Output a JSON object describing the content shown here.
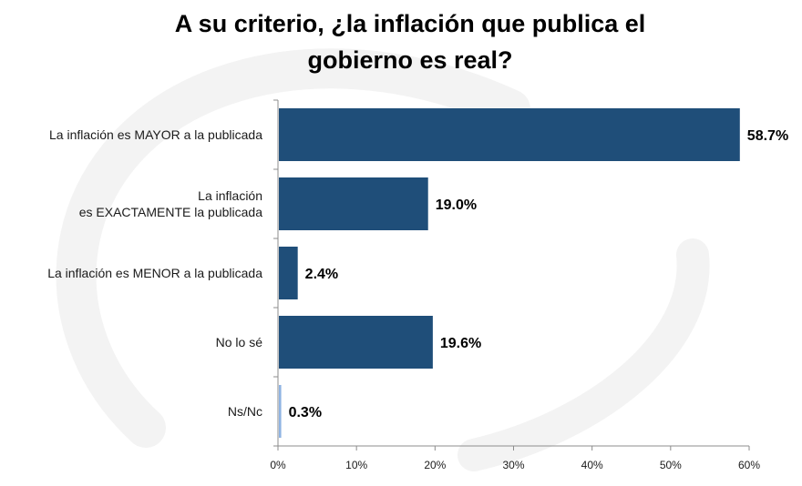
{
  "chart_data": {
    "type": "bar",
    "orientation": "horizontal",
    "title_lines": [
      "A su criterio, ¿la inflación que publica el",
      "gobierno es real?"
    ],
    "categories": [
      [
        "La inflación es MAYOR a la publicada"
      ],
      [
        "La inflación",
        "es EXACTAMENTE la publicada"
      ],
      [
        "La inflación es MENOR a la publicada"
      ],
      [
        "No lo sé"
      ],
      [
        "Ns/Nc"
      ]
    ],
    "values": [
      58.7,
      19.0,
      2.4,
      19.6,
      0.3
    ],
    "value_labels": [
      "58.7%",
      "19.0%",
      "2.4%",
      "19.6%",
      "0.3%"
    ],
    "bar_colors": [
      "#1f4e79",
      "#1f4e79",
      "#1f4e79",
      "#1f4e79",
      "#8fb4e3"
    ],
    "xlim": [
      0,
      60
    ],
    "xticks": [
      0,
      10,
      20,
      30,
      40,
      50,
      60
    ],
    "xtick_labels": [
      "0%",
      "10%",
      "20%",
      "30%",
      "40%",
      "50%",
      "60%"
    ],
    "grid": false,
    "xlabel": "",
    "ylabel": ""
  }
}
